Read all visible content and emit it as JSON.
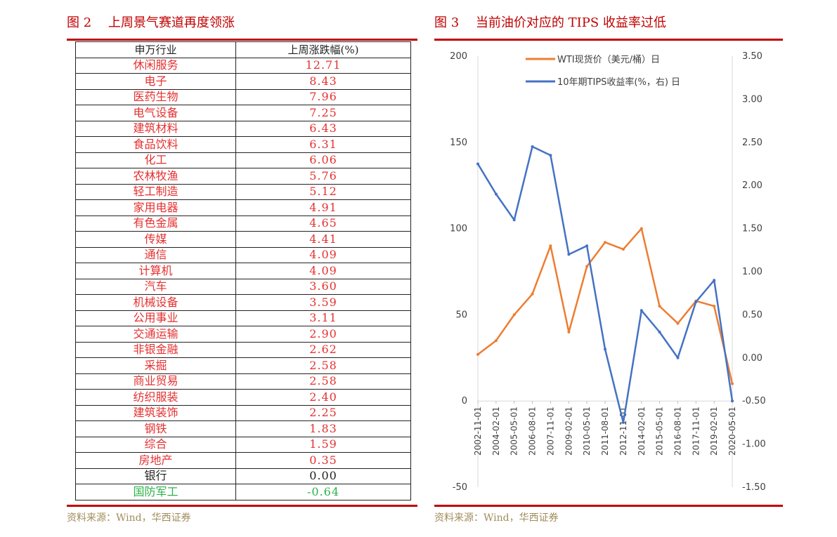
{
  "left": {
    "title": "图 2　 上周景气赛道再度领涨",
    "source": "资料来源：Wind，华西证券",
    "table": {
      "columns": [
        "申万行业",
        "上周涨跌幅(%)"
      ],
      "rows": [
        {
          "name": "休闲服务",
          "value": "12.71"
        },
        {
          "name": "电子",
          "value": "8.43"
        },
        {
          "name": "医药生物",
          "value": "7.96"
        },
        {
          "name": "电气设备",
          "value": "7.25"
        },
        {
          "name": "建筑材料",
          "value": "6.43"
        },
        {
          "name": "食品饮料",
          "value": "6.31"
        },
        {
          "name": "化工",
          "value": "6.06"
        },
        {
          "name": "农林牧渔",
          "value": "5.76"
        },
        {
          "name": "轻工制造",
          "value": "5.12"
        },
        {
          "name": "家用电器",
          "value": "4.91"
        },
        {
          "name": "有色金属",
          "value": "4.65"
        },
        {
          "name": "传媒",
          "value": "4.41"
        },
        {
          "name": "通信",
          "value": "4.09"
        },
        {
          "name": "计算机",
          "value": "4.09"
        },
        {
          "name": "汽车",
          "value": "3.60"
        },
        {
          "name": "机械设备",
          "value": "3.59"
        },
        {
          "name": "公用事业",
          "value": "3.11"
        },
        {
          "name": "交通运输",
          "value": "2.90"
        },
        {
          "name": "非银金融",
          "value": "2.62"
        },
        {
          "name": "采掘",
          "value": "2.58"
        },
        {
          "name": "商业贸易",
          "value": "2.58"
        },
        {
          "name": "纺织服装",
          "value": "2.40"
        },
        {
          "name": "建筑装饰",
          "value": "2.25"
        },
        {
          "name": "钢铁",
          "value": "1.83"
        },
        {
          "name": "综合",
          "value": "1.59"
        },
        {
          "name": "房地产",
          "value": "0.35"
        },
        {
          "name": "银行",
          "value": "0.00"
        },
        {
          "name": "国防军工",
          "value": "-0.64"
        }
      ]
    }
  },
  "right": {
    "title": "图 3　 当前油价对应的 TIPS 收益率过低",
    "source": "资料来源：Wind，华西证券"
  },
  "colors": {
    "accent": "#c00000",
    "positive": "#e53030",
    "negative": "#2db34a",
    "wti": "#ed7d31",
    "tips": "#4472c4",
    "source": "#a08d5c"
  },
  "chart_data": {
    "type": "line",
    "legend_position": "top",
    "grid": false,
    "x": [
      "2002-11-01",
      "2004-02-01",
      "2005-05-01",
      "2006-08-01",
      "2007-11-01",
      "2009-02-01",
      "2010-05-01",
      "2011-08-01",
      "2012-11-01",
      "2014-02-01",
      "2015-05-01",
      "2016-08-01",
      "2017-11-01",
      "2019-02-01",
      "2020-05-01"
    ],
    "xlim": [
      "2002-11-01",
      "2020-05-01"
    ],
    "ylim_left": [
      -50,
      200
    ],
    "yticks_left": [
      "-50",
      "0",
      "50",
      "100",
      "150",
      "200"
    ],
    "ylim_right": [
      -1.5,
      3.5
    ],
    "yticks_right": [
      "-1.50",
      "-1.00",
      "-0.50",
      "0.00",
      "0.50",
      "1.00",
      "1.50",
      "2.00",
      "2.50",
      "3.00",
      "3.50"
    ],
    "series": [
      {
        "name": "WTI现货价（美元/桶）日",
        "axis": "left",
        "values": [
          27,
          35,
          50,
          62,
          90,
          40,
          78,
          92,
          88,
          100,
          55,
          45,
          58,
          55,
          10
        ]
      },
      {
        "name": "10年期TIPS收益率(%，右) 日",
        "axis": "right",
        "values": [
          2.25,
          1.9,
          1.6,
          2.45,
          2.35,
          1.2,
          1.3,
          0.1,
          -0.75,
          0.55,
          0.3,
          0.0,
          0.65,
          0.9,
          -0.5
        ]
      }
    ]
  }
}
